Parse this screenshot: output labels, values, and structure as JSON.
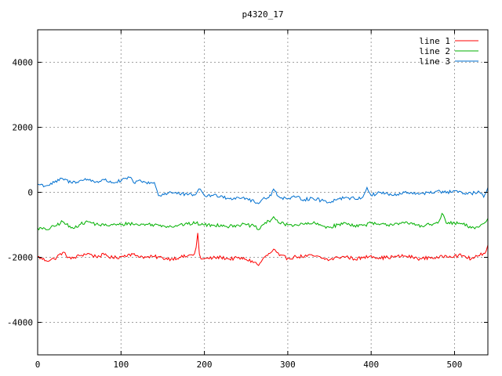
{
  "chart_data": {
    "type": "line",
    "title": "p4320_17",
    "xlabel": "",
    "ylabel": "",
    "xlim": [
      0,
      540
    ],
    "ylim": [
      -5000,
      5000
    ],
    "xticks": [
      0,
      100,
      200,
      300,
      400,
      500
    ],
    "yticks": [
      -4000,
      -2000,
      0,
      2000,
      4000
    ],
    "grid": true,
    "legend_position": "top-right",
    "series": [
      {
        "name": "line 1",
        "color": "#ff0000",
        "x": [
          0,
          10,
          20,
          30,
          40,
          50,
          60,
          70,
          80,
          90,
          100,
          110,
          120,
          130,
          140,
          150,
          160,
          170,
          180,
          188,
          190,
          192,
          194,
          196,
          200,
          210,
          220,
          230,
          240,
          250,
          260,
          265,
          270,
          280,
          283,
          290,
          300,
          310,
          320,
          330,
          340,
          350,
          360,
          370,
          380,
          390,
          400,
          410,
          420,
          430,
          440,
          450,
          460,
          470,
          480,
          490,
          500,
          510,
          520,
          530,
          538,
          540
        ],
        "y": [
          -1980,
          -2100,
          -2050,
          -1850,
          -2050,
          -1950,
          -1880,
          -1980,
          -1920,
          -2020,
          -1980,
          -1900,
          -1950,
          -2000,
          -1980,
          -2020,
          -2050,
          -2000,
          -1960,
          -1900,
          -1700,
          -1250,
          -1900,
          -2050,
          -2050,
          -2020,
          -2000,
          -2050,
          -2020,
          -2060,
          -2150,
          -2250,
          -2050,
          -1850,
          -1750,
          -1950,
          -2030,
          -1980,
          -1970,
          -1950,
          -2020,
          -2080,
          -2000,
          -1980,
          -2050,
          -2020,
          -1950,
          -2020,
          -2000,
          -1980,
          -1960,
          -2000,
          -2050,
          -2000,
          -2020,
          -1950,
          -1950,
          -1950,
          -2050,
          -1950,
          -1800,
          -1620
        ]
      },
      {
        "name": "line 2",
        "color": "#00b000",
        "x": [
          0,
          10,
          20,
          30,
          40,
          50,
          60,
          70,
          80,
          90,
          100,
          110,
          120,
          130,
          140,
          150,
          160,
          170,
          180,
          190,
          200,
          210,
          220,
          230,
          240,
          250,
          260,
          265,
          270,
          280,
          283,
          290,
          300,
          310,
          320,
          330,
          340,
          350,
          360,
          370,
          380,
          390,
          400,
          410,
          420,
          430,
          440,
          450,
          460,
          470,
          480,
          485,
          490,
          500,
          510,
          520,
          530,
          538,
          540
        ],
        "y": [
          -1100,
          -1150,
          -1050,
          -900,
          -1100,
          -1000,
          -900,
          -980,
          -1020,
          -1000,
          -1000,
          -950,
          -1000,
          -980,
          -1000,
          -1020,
          -1050,
          -1000,
          -980,
          -950,
          -1000,
          -1020,
          -1000,
          -1050,
          -1000,
          -1000,
          -1050,
          -1150,
          -1000,
          -850,
          -750,
          -950,
          -1000,
          -1000,
          -980,
          -950,
          -1020,
          -1080,
          -1000,
          -950,
          -1020,
          -1020,
          -950,
          -1000,
          -1000,
          -950,
          -950,
          -980,
          -1020,
          -1000,
          -950,
          -650,
          -950,
          -950,
          -980,
          -1100,
          -1050,
          -900,
          -800
        ]
      },
      {
        "name": "line 3",
        "color": "#0070d0",
        "x": [
          0,
          10,
          20,
          30,
          40,
          50,
          60,
          70,
          80,
          90,
          100,
          110,
          115,
          120,
          130,
          140,
          145,
          148,
          150,
          160,
          170,
          180,
          190,
          195,
          200,
          210,
          220,
          230,
          240,
          250,
          260,
          265,
          270,
          280,
          283,
          290,
          300,
          310,
          320,
          330,
          340,
          350,
          360,
          370,
          380,
          390,
          395,
          400,
          410,
          420,
          430,
          440,
          450,
          460,
          470,
          480,
          490,
          500,
          510,
          520,
          530,
          535,
          540
        ],
        "y": [
          250,
          200,
          300,
          420,
          300,
          350,
          400,
          320,
          380,
          300,
          350,
          460,
          300,
          350,
          300,
          300,
          -100,
          -120,
          -50,
          0,
          -50,
          -80,
          -50,
          100,
          -100,
          -100,
          -100,
          -200,
          -150,
          -180,
          -300,
          -350,
          -200,
          -100,
          100,
          -150,
          -200,
          -150,
          -220,
          -180,
          -250,
          -300,
          -200,
          -150,
          -200,
          -150,
          150,
          -100,
          0,
          -50,
          -100,
          0,
          -50,
          -20,
          -30,
          50,
          -20,
          50,
          -50,
          -30,
          0,
          -150,
          150
        ]
      }
    ]
  }
}
